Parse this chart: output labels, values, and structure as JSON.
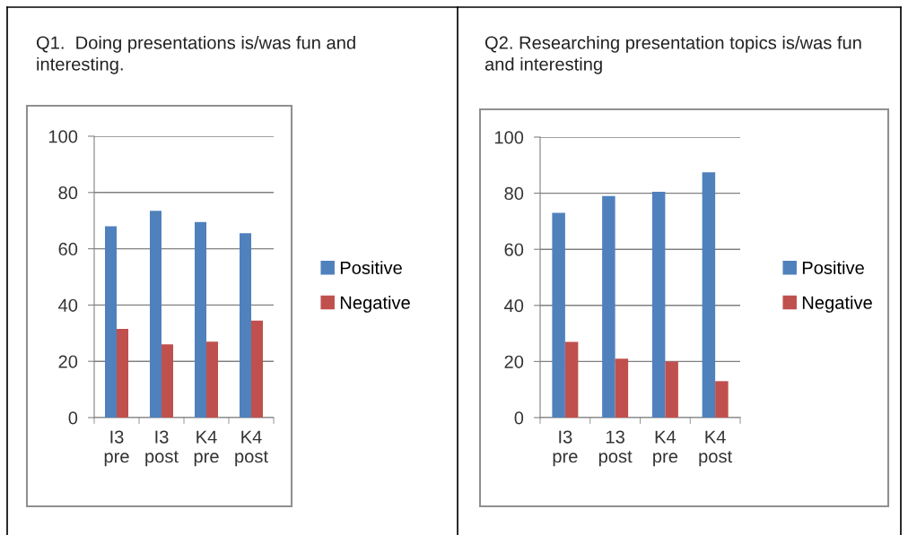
{
  "chart_data": [
    {
      "type": "bar",
      "title": "Q1.  Doing presentations is/was fun and interesting.",
      "categories": [
        "I3\npre",
        "I3\npost",
        "K4\npre",
        "K4\npost"
      ],
      "series": [
        {
          "name": "Positive",
          "color": "#4f81bd",
          "values": [
            68,
            73.5,
            69.5,
            65.5
          ]
        },
        {
          "name": "Negative",
          "color": "#c0504d",
          "values": [
            31.5,
            26,
            27,
            34.5
          ]
        }
      ],
      "ylim": [
        0,
        100
      ],
      "yticks": [
        0,
        20,
        40,
        60,
        80,
        100
      ],
      "grid": "y",
      "legend": "right"
    },
    {
      "type": "bar",
      "title": "Q2. Researching presentation topics is/was fun and interesting",
      "categories": [
        "I3\npre",
        "13\npost",
        "K4\npre",
        "K4\npost"
      ],
      "series": [
        {
          "name": "Positive",
          "color": "#4f81bd",
          "values": [
            73,
            79,
            80.5,
            87.5
          ]
        },
        {
          "name": "Negative",
          "color": "#c0504d",
          "values": [
            27,
            21,
            20,
            13
          ]
        }
      ],
      "ylim": [
        0,
        100
      ],
      "yticks": [
        0,
        20,
        40,
        60,
        80,
        100
      ],
      "grid": "y",
      "legend": "right"
    }
  ]
}
